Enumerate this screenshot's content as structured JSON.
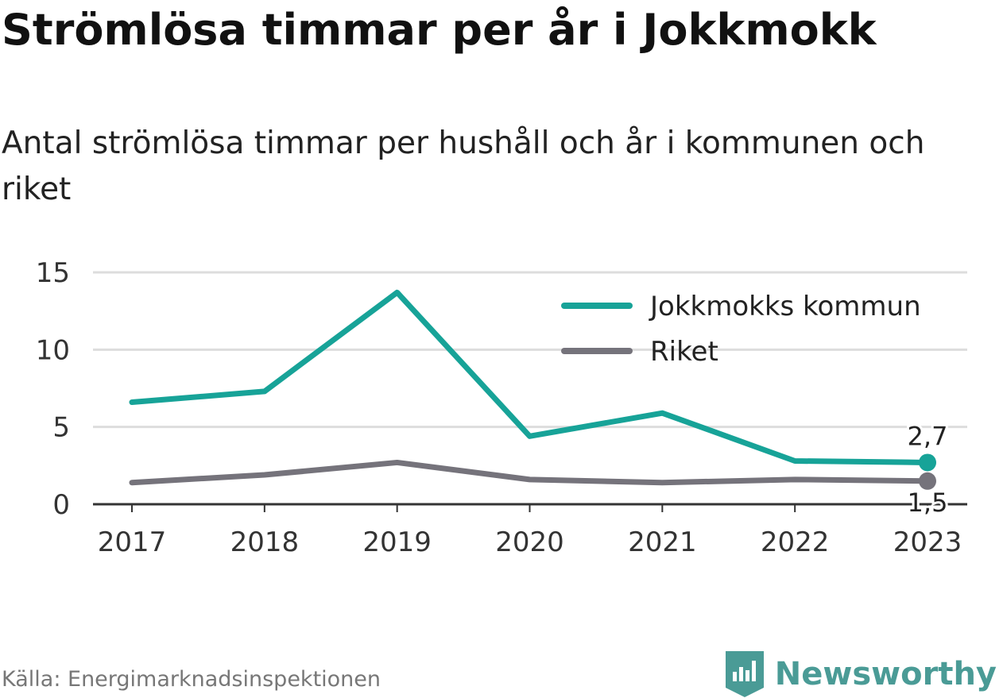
{
  "title": "Strömlösa timmar per år i Jokkmokk",
  "subtitle": "Antal strömlösa timmar per hushåll och år i kommunen och riket",
  "source": "Källa: Energimarknadsinspektionen",
  "brand": {
    "name": "Newsworthy",
    "icon": "newsworthy-logo-icon",
    "color": "#4a9b96"
  },
  "chart_data": {
    "type": "line",
    "title": "",
    "xlabel": "",
    "ylabel": "",
    "x": [
      "2017",
      "2018",
      "2019",
      "2020",
      "2021",
      "2022",
      "2023"
    ],
    "ylim": [
      0,
      15
    ],
    "yticks": [
      "0",
      "5",
      "10",
      "15"
    ],
    "grid": true,
    "legend_position": "top-right",
    "series": [
      {
        "name": "Jokkmokks kommun",
        "color": "#17a398",
        "values": [
          6.6,
          7.3,
          13.7,
          4.4,
          5.9,
          2.8,
          2.7
        ],
        "end_label": "2,7"
      },
      {
        "name": "Riket",
        "color": "#75737b",
        "values": [
          1.4,
          1.9,
          2.7,
          1.6,
          1.4,
          1.6,
          1.5
        ],
        "end_label": "1,5"
      }
    ]
  }
}
